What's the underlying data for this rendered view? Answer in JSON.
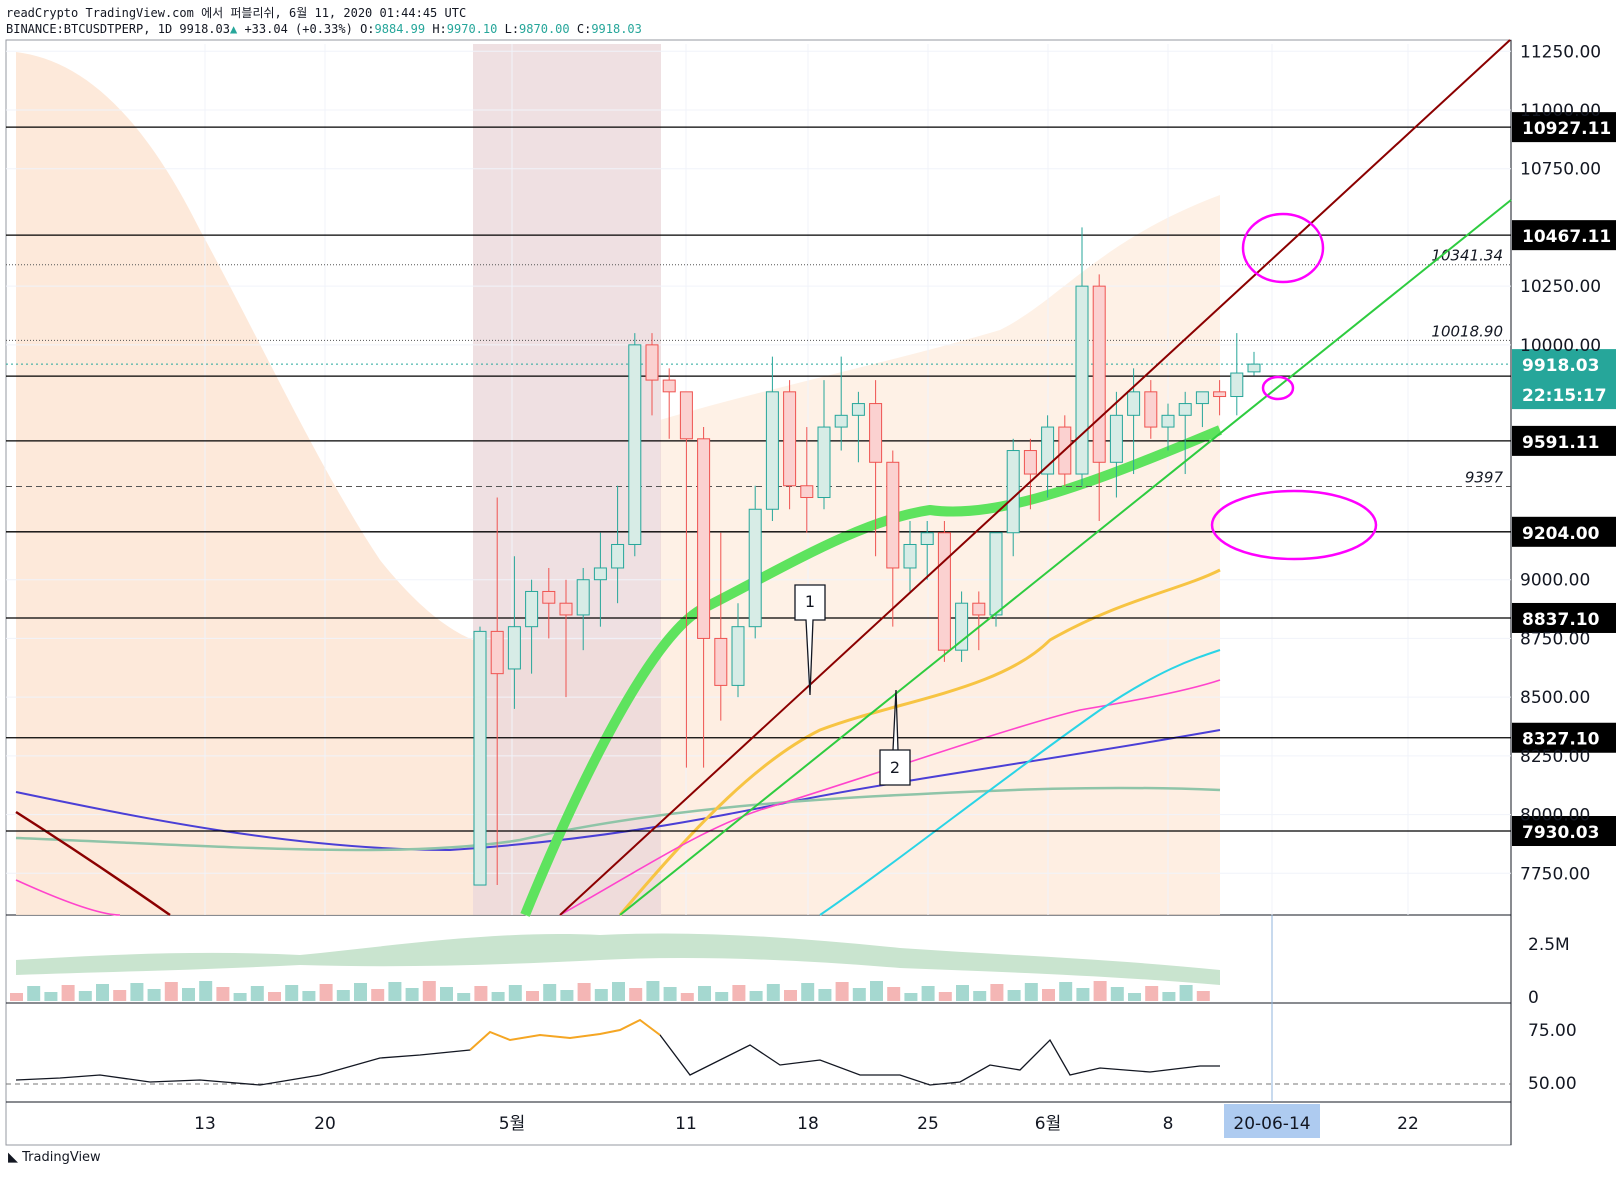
{
  "header": {
    "line1": "readCrypto TradingView.com 에서 퍼블리쉬, 6월 11, 2020 01:44:45 UTC",
    "symbol": "BINANCE:BTCUSDTPERP, 1D",
    "last": "9918.03",
    "change": "+33.04 (+0.33%)",
    "o_label": "O:",
    "o": "9884.99",
    "h_label": "H:",
    "h": "9970.10",
    "l_label": "L:",
    "l": "9870.00",
    "c_label": "C:",
    "c": "9918.03"
  },
  "footer": {
    "brand": "TradingView"
  },
  "colors": {
    "up": "#26a69a",
    "down": "#ef5350",
    "brand_tag": "#000000",
    "price_tag": "#26a69a",
    "date_tag": "#aecbf0"
  },
  "chart_data": {
    "type": "candlestick",
    "x_labels": [
      "13",
      "20",
      "5월",
      "11",
      "18",
      "25",
      "6월",
      "8",
      "20-06-14",
      "22"
    ],
    "y_ticks": [
      "11250.00",
      "11000.00",
      "10750.00",
      "10250.00",
      "10000.00",
      "9000.00",
      "8750.00",
      "8500.00",
      "8250.00",
      "8000.00",
      "7750.00"
    ],
    "ylim": [
      7700,
      11300
    ],
    "horizontal_levels": [
      "10927.11",
      "10467.11",
      "9866.88",
      "9591.11",
      "9204.00",
      "8837.10",
      "8327.10",
      "7930.03"
    ],
    "dotted_levels": [
      "10341.34",
      "10018.90",
      "9397"
    ],
    "last_price": "9918.03",
    "countdown": "22:15:17",
    "annotations": [
      "1",
      "2"
    ],
    "candles_may_june": [
      {
        "d": "04-27",
        "o": 7700,
        "h": 8800,
        "l": 7700,
        "c": 8780
      },
      {
        "d": "04-28",
        "o": 8780,
        "h": 9350,
        "l": 7700,
        "c": 8600
      },
      {
        "d": "04-29",
        "o": 8620,
        "h": 9100,
        "l": 8450,
        "c": 8800
      },
      {
        "d": "04-30",
        "o": 8800,
        "h": 9000,
        "l": 8600,
        "c": 8950
      },
      {
        "d": "05-01",
        "o": 8950,
        "h": 9050,
        "l": 8750,
        "c": 8900
      },
      {
        "d": "05-02",
        "o": 8900,
        "h": 9000,
        "l": 8500,
        "c": 8850
      },
      {
        "d": "05-03",
        "o": 8850,
        "h": 9050,
        "l": 8700,
        "c": 9000
      },
      {
        "d": "05-04",
        "o": 9000,
        "h": 9200,
        "l": 8800,
        "c": 9050
      },
      {
        "d": "05-05",
        "o": 9050,
        "h": 9400,
        "l": 8900,
        "c": 9150
      },
      {
        "d": "05-06",
        "o": 9150,
        "h": 10050,
        "l": 9100,
        "c": 10000
      },
      {
        "d": "05-07",
        "o": 10000,
        "h": 10050,
        "l": 9700,
        "c": 9850
      },
      {
        "d": "05-08",
        "o": 9850,
        "h": 9900,
        "l": 9600,
        "c": 9800
      },
      {
        "d": "05-09",
        "o": 9800,
        "h": 9800,
        "l": 8200,
        "c": 9600
      },
      {
        "d": "05-10",
        "o": 9600,
        "h": 9650,
        "l": 8200,
        "c": 8750
      },
      {
        "d": "05-11",
        "o": 8750,
        "h": 9200,
        "l": 8400,
        "c": 8550
      },
      {
        "d": "05-12",
        "o": 8550,
        "h": 8900,
        "l": 8500,
        "c": 8800
      },
      {
        "d": "05-13",
        "o": 8800,
        "h": 9400,
        "l": 8750,
        "c": 9300
      },
      {
        "d": "05-14",
        "o": 9300,
        "h": 9950,
        "l": 9250,
        "c": 9800
      },
      {
        "d": "05-15",
        "o": 9800,
        "h": 9850,
        "l": 9300,
        "c": 9400
      },
      {
        "d": "05-16",
        "o": 9400,
        "h": 9650,
        "l": 9200,
        "c": 9350
      },
      {
        "d": "05-17",
        "o": 9350,
        "h": 9850,
        "l": 9300,
        "c": 9650
      },
      {
        "d": "05-18",
        "o": 9650,
        "h": 9950,
        "l": 9550,
        "c": 9700
      },
      {
        "d": "05-19",
        "o": 9700,
        "h": 9800,
        "l": 9500,
        "c": 9750
      },
      {
        "d": "05-20",
        "o": 9750,
        "h": 9850,
        "l": 9100,
        "c": 9500
      },
      {
        "d": "05-21",
        "o": 9500,
        "h": 9550,
        "l": 8800,
        "c": 9050
      },
      {
        "d": "05-22",
        "o": 9050,
        "h": 9250,
        "l": 8950,
        "c": 9150
      },
      {
        "d": "05-23",
        "o": 9150,
        "h": 9250,
        "l": 9000,
        "c": 9200
      },
      {
        "d": "05-24",
        "o": 9200,
        "h": 9250,
        "l": 8650,
        "c": 8700
      },
      {
        "d": "05-25",
        "o": 8700,
        "h": 8950,
        "l": 8650,
        "c": 8900
      },
      {
        "d": "05-26",
        "o": 8900,
        "h": 8950,
        "l": 8700,
        "c": 8850
      },
      {
        "d": "05-27",
        "o": 8850,
        "h": 9200,
        "l": 8800,
        "c": 9200
      },
      {
        "d": "05-28",
        "o": 9200,
        "h": 9600,
        "l": 9100,
        "c": 9550
      },
      {
        "d": "05-29",
        "o": 9550,
        "h": 9600,
        "l": 9300,
        "c": 9450
      },
      {
        "d": "05-30",
        "o": 9450,
        "h": 9700,
        "l": 9350,
        "c": 9650
      },
      {
        "d": "05-31",
        "o": 9650,
        "h": 9700,
        "l": 9400,
        "c": 9450
      },
      {
        "d": "06-01",
        "o": 9450,
        "h": 10500,
        "l": 9400,
        "c": 10250
      },
      {
        "d": "06-02",
        "o": 10250,
        "h": 10300,
        "l": 9250,
        "c": 9500
      },
      {
        "d": "06-03",
        "o": 9500,
        "h": 9800,
        "l": 9350,
        "c": 9700
      },
      {
        "d": "06-04",
        "o": 9700,
        "h": 9900,
        "l": 9450,
        "c": 9800
      },
      {
        "d": "06-05",
        "o": 9800,
        "h": 9850,
        "l": 9600,
        "c": 9650
      },
      {
        "d": "06-06",
        "o": 9650,
        "h": 9750,
        "l": 9550,
        "c": 9700
      },
      {
        "d": "06-07",
        "o": 9700,
        "h": 9800,
        "l": 9450,
        "c": 9750
      },
      {
        "d": "06-08",
        "o": 9750,
        "h": 9800,
        "l": 9650,
        "c": 9800
      },
      {
        "d": "06-09",
        "o": 9800,
        "h": 9850,
        "l": 9700,
        "c": 9780
      },
      {
        "d": "06-10",
        "o": 9780,
        "h": 10050,
        "l": 9700,
        "c": 9880
      },
      {
        "d": "06-11",
        "o": 9885,
        "h": 9970,
        "l": 9870,
        "c": 9918
      }
    ],
    "volume_axis": [
      "2.5M",
      "0"
    ],
    "rsi_axis": [
      "75.00",
      "50.00"
    ]
  }
}
